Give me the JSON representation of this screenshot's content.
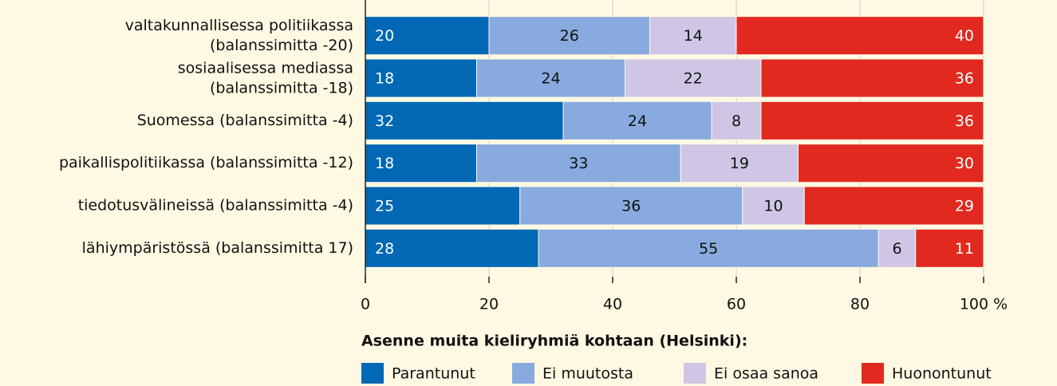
{
  "chart_data": {
    "type": "stacked_barh",
    "legend_title": "Asenne muita kieliryhmiä kohtaan (Helsinki):",
    "categories": [
      "valtakunnallisessa politiikassa\n(balanssimitta -20)",
      "sosiaalisessa mediassa\n(balanssimitta -18)",
      "Suomessa (balanssimitta -4)",
      "paikallispolitiikassa (balanssimitta -12)",
      "tiedotusvälineissä (balanssimitta -4)",
      "lähiympäristössä (balanssimitta 17)"
    ],
    "series": [
      {
        "name": "Parantunut",
        "color": "#0068b4",
        "values": [
          20,
          18,
          32,
          18,
          25,
          28
        ]
      },
      {
        "name": "Ei muutosta",
        "color": "#88aade",
        "values": [
          26,
          24,
          24,
          33,
          36,
          55
        ]
      },
      {
        "name": "Ei osaa sanoa",
        "color": "#cec6e4",
        "values": [
          14,
          22,
          8,
          19,
          10,
          6
        ]
      },
      {
        "name": "Huonontunut",
        "color": "#e1291f",
        "values": [
          40,
          36,
          36,
          30,
          29,
          11
        ]
      }
    ],
    "xlim": [
      0,
      100
    ],
    "xticks": [
      0,
      20,
      40,
      60,
      80,
      {
        "value": 100,
        "label": "100 %"
      }
    ],
    "grid": true
  }
}
